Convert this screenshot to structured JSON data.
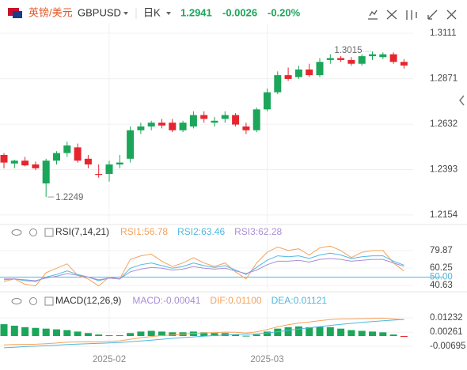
{
  "header": {
    "name": "英镑/美元",
    "symbol": "GBPUSD",
    "period": "日K",
    "price": "1.2941",
    "change": "-0.0026",
    "change_pct": "-0.20%"
  },
  "chart_data": [
    {
      "type": "candlestick",
      "up_color": "#1ba65a",
      "down_color": "#e5262f",
      "categories": [
        null,
        null,
        null,
        null,
        null,
        null,
        null,
        null,
        null,
        null,
        "2025-02",
        null,
        null,
        null,
        null,
        null,
        null,
        null,
        null,
        null,
        null,
        null,
        null,
        null,
        null,
        "2025-03",
        null,
        null,
        null,
        null,
        null,
        null,
        null,
        null,
        null,
        null,
        null,
        null,
        null
      ],
      "open": [
        1.247,
        1.2425,
        1.244,
        1.242,
        1.232,
        1.244,
        1.248,
        1.251,
        1.245,
        1.237,
        1.237,
        1.242,
        1.245,
        1.26,
        1.262,
        1.264,
        1.264,
        1.26,
        1.262,
        1.268,
        1.264,
        1.266,
        1.268,
        1.262,
        1.26,
        1.271,
        1.28,
        1.289,
        1.288,
        1.292,
        1.289,
        1.297,
        1.298,
        1.297,
        1.295,
        1.299,
        1.2985,
        1.3,
        1.296
      ],
      "high": [
        1.248,
        1.2445,
        1.246,
        1.2435,
        1.245,
        1.249,
        1.254,
        1.253,
        1.247,
        1.242,
        1.244,
        1.247,
        1.262,
        1.264,
        1.265,
        1.266,
        1.266,
        1.265,
        1.27,
        1.27,
        1.267,
        1.27,
        1.269,
        1.264,
        1.272,
        1.282,
        1.291,
        1.293,
        1.294,
        1.295,
        1.298,
        1.3,
        1.299,
        1.2985,
        1.3,
        1.3015,
        1.301,
        1.301,
        1.2975
      ],
      "low": [
        1.24,
        1.24,
        1.241,
        1.239,
        1.2249,
        1.242,
        1.246,
        1.243,
        1.24,
        1.235,
        1.233,
        1.24,
        1.243,
        1.258,
        1.26,
        1.261,
        1.259,
        1.259,
        1.261,
        1.264,
        1.262,
        1.264,
        1.262,
        1.258,
        1.259,
        1.27,
        1.279,
        1.286,
        1.287,
        1.288,
        1.288,
        1.295,
        1.296,
        1.294,
        1.294,
        1.297,
        1.2975,
        1.295,
        1.2925
      ],
      "close": [
        1.243,
        1.244,
        1.2415,
        1.24,
        1.244,
        1.248,
        1.252,
        1.244,
        1.242,
        1.2365,
        1.242,
        1.243,
        1.26,
        1.262,
        1.264,
        1.2625,
        1.26,
        1.264,
        1.268,
        1.266,
        1.265,
        1.268,
        1.263,
        1.26,
        1.271,
        1.28,
        1.289,
        1.287,
        1.292,
        1.289,
        1.296,
        1.298,
        1.297,
        1.295,
        1.299,
        1.3,
        1.3,
        1.296,
        1.2941
      ],
      "max_label": "chart_data.0.high.35",
      "min_label": "chart_data.0.low.4",
      "ylim": [
        1.2112,
        1.3161
      ],
      "yticks": [
        1.3111,
        1.2871,
        1.2632,
        1.2393,
        1.2154
      ],
      "grid": true
    },
    {
      "type": "line",
      "title": "RSI(7,14,21)",
      "series": [
        {
          "name": "RSI1:56.78",
          "color": "#f5a35a",
          "values": [
            45,
            48,
            42,
            40,
            55,
            60,
            65,
            52,
            48,
            40,
            50,
            48,
            70,
            74,
            76,
            68,
            62,
            66,
            72,
            66,
            62,
            66,
            56,
            48,
            66,
            78,
            84,
            80,
            82,
            75,
            83,
            85,
            80,
            72,
            78,
            80,
            80,
            66,
            56.78
          ]
        },
        {
          "name": "RSI2:63.46",
          "color": "#4fb8e0",
          "values": [
            47,
            48,
            46,
            45,
            50,
            53,
            57,
            53,
            50,
            46,
            49,
            48,
            60,
            64,
            66,
            63,
            60,
            62,
            66,
            63,
            61,
            63,
            58,
            53,
            61,
            69,
            74,
            73,
            74,
            71,
            75,
            77,
            75,
            71,
            73,
            74,
            74,
            68,
            63.46
          ]
        },
        {
          "name": "RSI3:62.28",
          "color": "#a98ed6",
          "values": [
            48,
            48,
            47,
            46,
            49,
            51,
            54,
            52,
            50,
            47,
            49,
            48,
            56,
            59,
            61,
            60,
            58,
            59,
            62,
            60,
            59,
            60,
            57,
            54,
            58,
            64,
            68,
            68,
            69,
            67,
            70,
            71,
            70,
            68,
            69,
            70,
            70,
            66,
            62.28
          ]
        }
      ],
      "ylim": [
        36.2,
        104
      ],
      "yticks": [
        79.87,
        60.25,
        {
          "value": 50,
          "label": "50.00",
          "color": "#4fb8e0"
        },
        40.63
      ],
      "grid": true
    },
    {
      "type": "macd",
      "title": "MACD(12,26,9)",
      "series": [
        {
          "name": "MACD:-0.00041",
          "color": "#a98ed6",
          "up_color": "#1ba65a",
          "down_color": "#e5262f",
          "values": [
            0.008,
            0.007,
            0.006,
            0.0055,
            0.005,
            0.0045,
            0.004,
            0.003,
            0.002,
            0.001,
            0.0005,
            0.0005,
            0.002,
            0.003,
            0.0035,
            0.003,
            0.0025,
            0.0025,
            0.003,
            0.0025,
            0.002,
            0.002,
            0.001,
            0.0002,
            0.001,
            0.003,
            0.005,
            0.006,
            0.0065,
            0.006,
            0.0062,
            0.006,
            0.005,
            0.004,
            0.0035,
            0.003,
            0.0025,
            0.001,
            -0.00041
          ]
        },
        {
          "name": "DIF:0.01100",
          "color": "#f5a35a",
          "values": [
            -0.006,
            -0.0058,
            -0.0057,
            -0.0056,
            -0.0052,
            -0.0048,
            -0.0042,
            -0.004,
            -0.0039,
            -0.004,
            -0.0036,
            -0.0033,
            -0.0022,
            -0.0012,
            -0.0003,
            0.0003,
            0.0007,
            0.0012,
            0.0018,
            0.0021,
            0.0023,
            0.0026,
            0.0025,
            0.002,
            0.0028,
            0.0044,
            0.0062,
            0.0076,
            0.0088,
            0.0095,
            0.0104,
            0.0112,
            0.0116,
            0.0117,
            0.0118,
            0.012,
            0.0121,
            0.0116,
            0.011
          ]
        },
        {
          "name": "DEA:0.01121",
          "color": "#4fb8e0",
          "values": [
            -0.008,
            -0.0076,
            -0.0072,
            -0.0069,
            -0.0066,
            -0.0062,
            -0.0058,
            -0.0055,
            -0.0052,
            -0.005,
            -0.0047,
            -0.0044,
            -0.0039,
            -0.0034,
            -0.0028,
            -0.0022,
            -0.0016,
            -0.0011,
            -0.0006,
            -0.0001,
            0.0003,
            0.0007,
            0.001,
            0.0012,
            0.0015,
            0.0021,
            0.0029,
            0.0038,
            0.0047,
            0.0056,
            0.0064,
            0.0072,
            0.0079,
            0.0086,
            0.0092,
            0.0098,
            0.0103,
            0.0108,
            0.01121
          ]
        }
      ],
      "ylim": [
        -0.0177,
        0.0252
      ],
      "yticks": [
        0.01232,
        0.00261,
        -0.00695
      ],
      "grid": true
    }
  ]
}
